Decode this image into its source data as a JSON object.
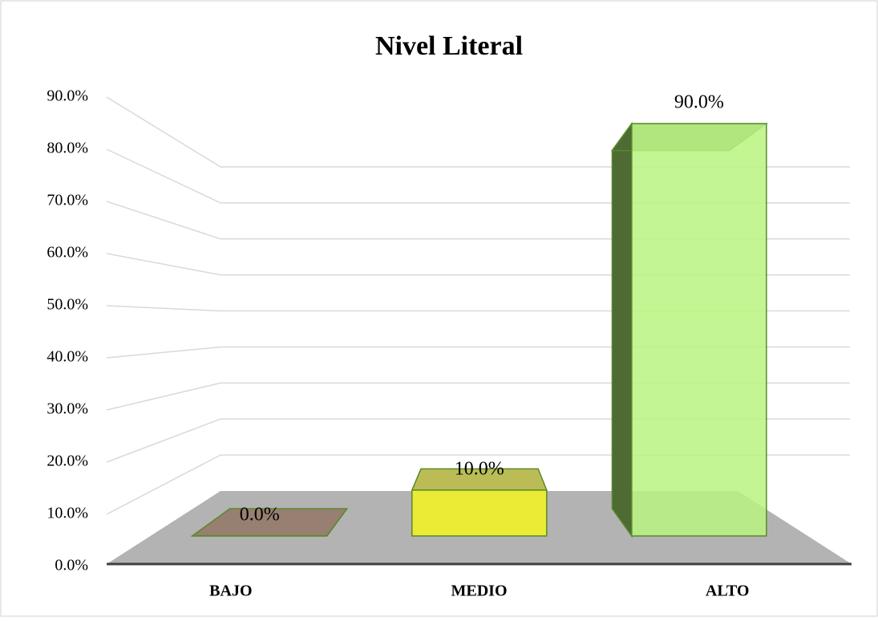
{
  "chart_data": {
    "type": "bar",
    "title": "Nivel Literal",
    "categories": [
      "BAJO",
      "MEDIO",
      "ALTO"
    ],
    "values": [
      0,
      10,
      90
    ],
    "value_labels": [
      "0.0%",
      "10.0%",
      "90.0%"
    ],
    "colors": [
      "#c9a58c",
      "#f4f41e",
      "#b9f37f"
    ],
    "side_colors": [
      "#8c6a55",
      "#a0a010",
      "#4f6b34"
    ],
    "ylim": [
      0,
      90
    ],
    "yticks": [
      {
        "value": 0,
        "label": "0.0%"
      },
      {
        "value": 10,
        "label": "10.0%"
      },
      {
        "value": 20,
        "label": "20.0%"
      },
      {
        "value": 30,
        "label": "30.0%"
      },
      {
        "value": 40,
        "label": "40.0%"
      },
      {
        "value": 50,
        "label": "50.0%"
      },
      {
        "value": 60,
        "label": "60.0%"
      },
      {
        "value": 70,
        "label": "70.0%"
      },
      {
        "value": 80,
        "label": "80.0%"
      },
      {
        "value": 90,
        "label": "90.0%"
      }
    ],
    "grid": true
  }
}
